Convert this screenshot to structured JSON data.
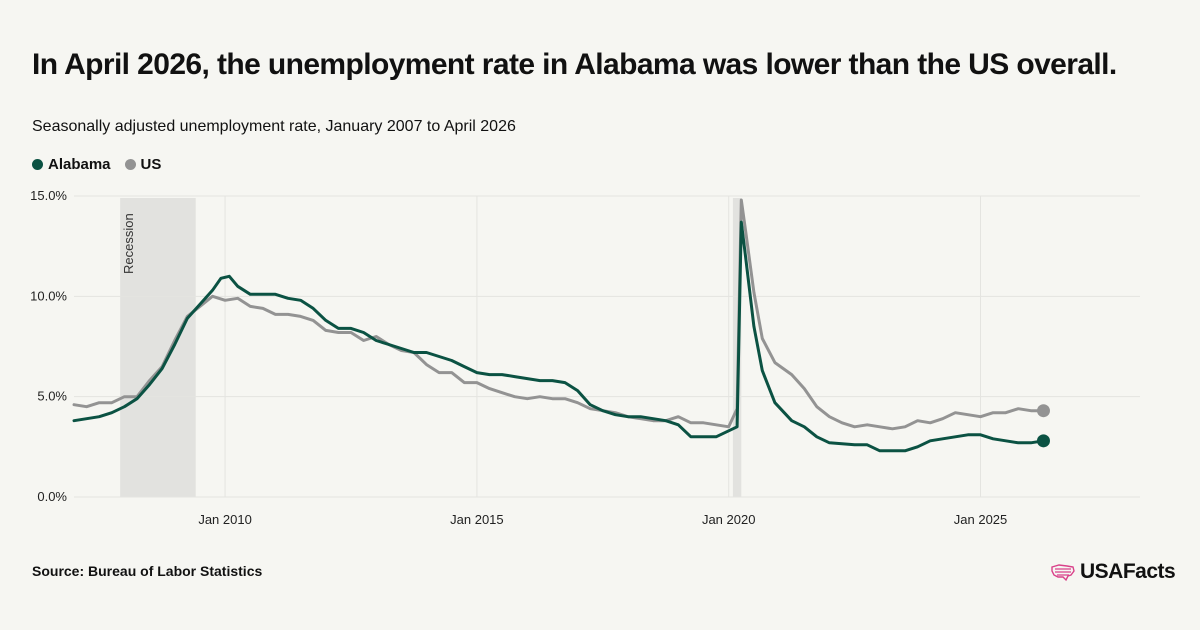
{
  "title": "In April 2026, the unemployment rate in Alabama was lower than the US overall.",
  "subtitle": "Seasonally adjusted unemployment rate, January 2007 to April 2026",
  "source": "Source: Bureau of Labor Statistics",
  "brand": "USAFacts",
  "colors": {
    "alabama": "#0b5243",
    "us": "#939393",
    "recession_band": "#e2e2df",
    "grid": "#e4e4e0",
    "background": "#f6f6f2",
    "brand_icon": "#d9418a"
  },
  "legend": [
    {
      "label": "Alabama",
      "color": "#0b5243"
    },
    {
      "label": "US",
      "color": "#939393"
    }
  ],
  "chart_data": {
    "type": "line",
    "ylim": [
      0,
      15
    ],
    "yticks": [
      0,
      5,
      10,
      15
    ],
    "ytick_labels": [
      "0.0%",
      "5.0%",
      "10.0%",
      "15.0%"
    ],
    "xlim": [
      "2007-01",
      "2028-03"
    ],
    "xticks": [
      "2010-01",
      "2015-01",
      "2020-01",
      "2025-01"
    ],
    "xtick_labels": [
      "Jan 2010",
      "Jan 2015",
      "Jan 2020",
      "Jan 2025"
    ],
    "grid": true,
    "recessions": [
      {
        "start": "2007-12",
        "end": "2009-06",
        "label": "Recession"
      },
      {
        "start": "2020-02",
        "end": "2020-04",
        "label": ""
      }
    ],
    "series": [
      {
        "name": "Alabama",
        "points": [
          [
            "2007-01",
            3.8
          ],
          [
            "2007-04",
            3.9
          ],
          [
            "2007-07",
            4.0
          ],
          [
            "2007-10",
            4.2
          ],
          [
            "2008-01",
            4.5
          ],
          [
            "2008-04",
            4.9
          ],
          [
            "2008-07",
            5.6
          ],
          [
            "2008-10",
            6.4
          ],
          [
            "2009-01",
            7.6
          ],
          [
            "2009-04",
            8.9
          ],
          [
            "2009-07",
            9.6
          ],
          [
            "2009-10",
            10.3
          ],
          [
            "2009-12",
            10.9
          ],
          [
            "2010-02",
            11.0
          ],
          [
            "2010-04",
            10.5
          ],
          [
            "2010-07",
            10.1
          ],
          [
            "2010-10",
            10.1
          ],
          [
            "2011-01",
            10.1
          ],
          [
            "2011-04",
            9.9
          ],
          [
            "2011-07",
            9.8
          ],
          [
            "2011-10",
            9.4
          ],
          [
            "2012-01",
            8.8
          ],
          [
            "2012-04",
            8.4
          ],
          [
            "2012-07",
            8.4
          ],
          [
            "2012-10",
            8.2
          ],
          [
            "2013-01",
            7.8
          ],
          [
            "2013-04",
            7.6
          ],
          [
            "2013-07",
            7.4
          ],
          [
            "2013-10",
            7.2
          ],
          [
            "2014-01",
            7.2
          ],
          [
            "2014-04",
            7.0
          ],
          [
            "2014-07",
            6.8
          ],
          [
            "2014-10",
            6.5
          ],
          [
            "2015-01",
            6.2
          ],
          [
            "2015-04",
            6.1
          ],
          [
            "2015-07",
            6.1
          ],
          [
            "2015-10",
            6.0
          ],
          [
            "2016-01",
            5.9
          ],
          [
            "2016-04",
            5.8
          ],
          [
            "2016-07",
            5.8
          ],
          [
            "2016-10",
            5.7
          ],
          [
            "2017-01",
            5.3
          ],
          [
            "2017-04",
            4.6
          ],
          [
            "2017-07",
            4.3
          ],
          [
            "2017-10",
            4.1
          ],
          [
            "2018-01",
            4.0
          ],
          [
            "2018-04",
            4.0
          ],
          [
            "2018-07",
            3.9
          ],
          [
            "2018-10",
            3.8
          ],
          [
            "2019-01",
            3.6
          ],
          [
            "2019-04",
            3.0
          ],
          [
            "2019-07",
            3.0
          ],
          [
            "2019-10",
            3.0
          ],
          [
            "2020-01",
            3.3
          ],
          [
            "2020-03",
            3.5
          ],
          [
            "2020-04",
            13.7
          ],
          [
            "2020-05",
            12.0
          ],
          [
            "2020-07",
            8.5
          ],
          [
            "2020-09",
            6.3
          ],
          [
            "2020-12",
            4.7
          ],
          [
            "2021-04",
            3.8
          ],
          [
            "2021-07",
            3.5
          ],
          [
            "2021-10",
            3.0
          ],
          [
            "2022-01",
            2.7
          ],
          [
            "2022-07",
            2.6
          ],
          [
            "2022-10",
            2.6
          ],
          [
            "2023-01",
            2.3
          ],
          [
            "2023-07",
            2.3
          ],
          [
            "2023-10",
            2.5
          ],
          [
            "2024-01",
            2.8
          ],
          [
            "2024-04",
            2.9
          ],
          [
            "2024-07",
            3.0
          ],
          [
            "2024-10",
            3.1
          ],
          [
            "2025-01",
            3.1
          ],
          [
            "2025-04",
            2.9
          ],
          [
            "2025-07",
            2.8
          ],
          [
            "2025-10",
            2.7
          ],
          [
            "2026-01",
            2.7
          ],
          [
            "2026-04",
            2.8
          ]
        ]
      },
      {
        "name": "US",
        "points": [
          [
            "2007-01",
            4.6
          ],
          [
            "2007-04",
            4.5
          ],
          [
            "2007-07",
            4.7
          ],
          [
            "2007-10",
            4.7
          ],
          [
            "2008-01",
            5.0
          ],
          [
            "2008-04",
            5.0
          ],
          [
            "2008-07",
            5.8
          ],
          [
            "2008-10",
            6.5
          ],
          [
            "2009-01",
            7.8
          ],
          [
            "2009-04",
            9.0
          ],
          [
            "2009-07",
            9.5
          ],
          [
            "2009-10",
            10.0
          ],
          [
            "2010-01",
            9.8
          ],
          [
            "2010-04",
            9.9
          ],
          [
            "2010-07",
            9.5
          ],
          [
            "2010-10",
            9.4
          ],
          [
            "2011-01",
            9.1
          ],
          [
            "2011-04",
            9.1
          ],
          [
            "2011-07",
            9.0
          ],
          [
            "2011-10",
            8.8
          ],
          [
            "2012-01",
            8.3
          ],
          [
            "2012-04",
            8.2
          ],
          [
            "2012-07",
            8.2
          ],
          [
            "2012-10",
            7.8
          ],
          [
            "2013-01",
            8.0
          ],
          [
            "2013-04",
            7.6
          ],
          [
            "2013-07",
            7.3
          ],
          [
            "2013-10",
            7.2
          ],
          [
            "2014-01",
            6.6
          ],
          [
            "2014-04",
            6.2
          ],
          [
            "2014-07",
            6.2
          ],
          [
            "2014-10",
            5.7
          ],
          [
            "2015-01",
            5.7
          ],
          [
            "2015-04",
            5.4
          ],
          [
            "2015-07",
            5.2
          ],
          [
            "2015-10",
            5.0
          ],
          [
            "2016-01",
            4.9
          ],
          [
            "2016-04",
            5.0
          ],
          [
            "2016-07",
            4.9
          ],
          [
            "2016-10",
            4.9
          ],
          [
            "2017-01",
            4.7
          ],
          [
            "2017-04",
            4.4
          ],
          [
            "2017-07",
            4.3
          ],
          [
            "2017-10",
            4.2
          ],
          [
            "2018-01",
            4.0
          ],
          [
            "2018-04",
            3.9
          ],
          [
            "2018-07",
            3.8
          ],
          [
            "2018-10",
            3.8
          ],
          [
            "2019-01",
            4.0
          ],
          [
            "2019-04",
            3.7
          ],
          [
            "2019-07",
            3.7
          ],
          [
            "2019-10",
            3.6
          ],
          [
            "2020-01",
            3.5
          ],
          [
            "2020-03",
            4.4
          ],
          [
            "2020-04",
            14.8
          ],
          [
            "2020-05",
            13.3
          ],
          [
            "2020-07",
            10.2
          ],
          [
            "2020-09",
            7.9
          ],
          [
            "2020-12",
            6.7
          ],
          [
            "2021-04",
            6.1
          ],
          [
            "2021-07",
            5.4
          ],
          [
            "2021-10",
            4.5
          ],
          [
            "2022-01",
            4.0
          ],
          [
            "2022-04",
            3.7
          ],
          [
            "2022-07",
            3.5
          ],
          [
            "2022-10",
            3.6
          ],
          [
            "2023-01",
            3.5
          ],
          [
            "2023-04",
            3.4
          ],
          [
            "2023-07",
            3.5
          ],
          [
            "2023-10",
            3.8
          ],
          [
            "2024-01",
            3.7
          ],
          [
            "2024-04",
            3.9
          ],
          [
            "2024-07",
            4.2
          ],
          [
            "2024-10",
            4.1
          ],
          [
            "2025-01",
            4.0
          ],
          [
            "2025-04",
            4.2
          ],
          [
            "2025-07",
            4.2
          ],
          [
            "2025-10",
            4.4
          ],
          [
            "2026-01",
            4.3
          ],
          [
            "2026-04",
            4.3
          ]
        ]
      }
    ]
  }
}
